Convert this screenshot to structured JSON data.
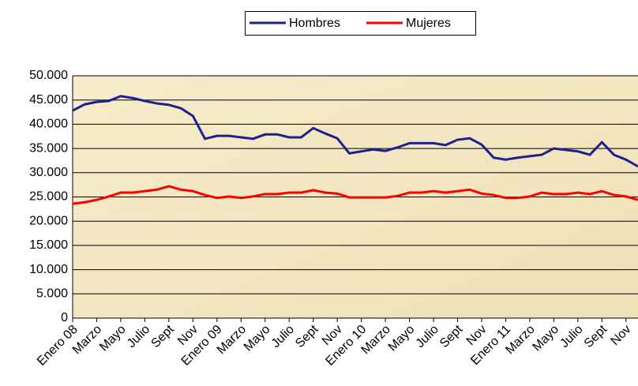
{
  "chart_data": {
    "type": "line",
    "categories": [
      "Enero 08",
      null,
      "Marzo",
      null,
      "Mayo",
      null,
      "Julio",
      null,
      "Sept",
      null,
      "Nov",
      null,
      "Enero 09",
      null,
      "Marzo",
      null,
      "Mayo",
      null,
      "Julio",
      null,
      "Sept",
      null,
      "Nov",
      null,
      "Enero 10",
      null,
      "Marzo",
      null,
      "Mayo",
      null,
      "Julio",
      null,
      "Sept",
      null,
      "Nov",
      null,
      "Enero 11",
      null,
      "Marzo",
      null,
      "Mayo",
      null,
      "Julio",
      null,
      "Sept",
      null,
      "Nov",
      null
    ],
    "series": [
      {
        "name": "Hombres",
        "color": "#1f1f8f",
        "values": [
          42800,
          44100,
          44600,
          44800,
          45800,
          45400,
          44800,
          44300,
          44000,
          43300,
          41700,
          37000,
          37600,
          37600,
          37300,
          37000,
          37900,
          37900,
          37300,
          37300,
          39200,
          38100,
          37100,
          34000,
          34400,
          34800,
          34500,
          35200,
          36100,
          36100,
          36100,
          35700,
          36800,
          37100,
          35800,
          33100,
          32700,
          33100,
          33400,
          33700,
          35000,
          34700,
          34400,
          33700,
          36300,
          33700,
          32700,
          31300
        ]
      },
      {
        "name": "Mujeres",
        "color": "#ff0000",
        "values": [
          23600,
          23900,
          24400,
          25100,
          25900,
          25900,
          26200,
          26500,
          27200,
          26500,
          26200,
          25400,
          24800,
          25100,
          24800,
          25100,
          25600,
          25600,
          25900,
          25900,
          26400,
          25900,
          25700,
          24900,
          24900,
          24900,
          24900,
          25200,
          25900,
          25900,
          26200,
          25900,
          26200,
          26500,
          25700,
          25400,
          24800,
          24800,
          25100,
          25900,
          25600,
          25600,
          25900,
          25600,
          26200,
          25400,
          25100,
          24400
        ]
      }
    ],
    "ylim": [
      0,
      50000
    ],
    "yticks": [
      0,
      {
        "value": 5000,
        "label": "5.000"
      },
      {
        "value": 10000,
        "label": "10.000"
      },
      {
        "value": 15000,
        "label": "15.000"
      },
      {
        "value": 20000,
        "label": "20.000"
      },
      {
        "value": 25000,
        "label": "25.000"
      },
      {
        "value": 30000,
        "label": "30.000"
      },
      {
        "value": 35000,
        "label": "35.000"
      },
      {
        "value": 40000,
        "label": "40.000"
      },
      {
        "value": 45000,
        "label": "45.000"
      },
      {
        "value": 50000,
        "label": "50.000"
      }
    ],
    "grid": true,
    "legend": "top"
  }
}
